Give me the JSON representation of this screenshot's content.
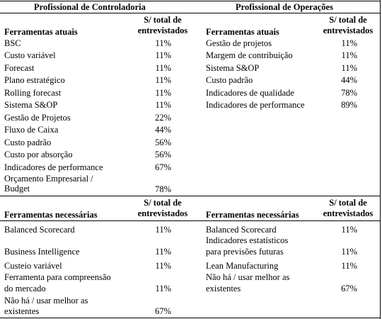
{
  "headers": {
    "controladoria": "Profissional de Controladoria",
    "operacoes": "Profissional de Operações"
  },
  "column_labels": {
    "atuais": "Ferramentas atuais",
    "necessarias": "Ferramentas necessárias",
    "total_line1": "S/ total de",
    "total_line2": "entrevistados"
  },
  "controladoria_atuais": [
    {
      "tool": "BSC",
      "value": "11%"
    },
    {
      "tool": "Custo variável",
      "value": "11%"
    },
    {
      "tool": "Forecast",
      "value": "11%"
    },
    {
      "tool": "Plano estratégico",
      "value": "11%"
    },
    {
      "tool": "Rolling forecast",
      "value": "11%"
    },
    {
      "tool": "Sistema S&OP",
      "value": "11%"
    },
    {
      "tool": "Gestão de Projetos",
      "value": "22%"
    },
    {
      "tool": "Fluxo de Caixa",
      "value": "44%"
    },
    {
      "tool": "Custo padrão",
      "value": "56%"
    },
    {
      "tool": "Custo por absorção",
      "value": "56%"
    },
    {
      "tool": "Indicadores de performance",
      "value": "67%"
    },
    {
      "tool_line1": "Orçamento Empresarial /",
      "tool_line2": "Budget",
      "value": "78%"
    }
  ],
  "operacoes_atuais": [
    {
      "tool": "Gestão de projetos",
      "value": "11%"
    },
    {
      "tool": "Margem de contribuição",
      "value": "11%"
    },
    {
      "tool": "Sistema S&OP",
      "value": "11%"
    },
    {
      "tool": "Custo padrão",
      "value": "44%"
    },
    {
      "tool": "Indicadores de qualidade",
      "value": "78%"
    },
    {
      "tool": "Indicadores de performance",
      "value": "89%"
    }
  ],
  "controladoria_necessarias": [
    {
      "tool": "Balanced Scorecard",
      "value": "11%"
    },
    {
      "tool": "Business Intelligence",
      "value": "11%"
    },
    {
      "tool": "Custeio variável",
      "value": "11%"
    },
    {
      "tool_line1": "Ferramenta para compreensão",
      "tool_line2": "do mercado",
      "value": "11%"
    },
    {
      "tool_line1": "Não há / usar melhor as",
      "tool_line2": "existentes",
      "value": "67%"
    }
  ],
  "operacoes_necessarias": [
    {
      "tool": "Balanced Scorecard",
      "value": "11%"
    },
    {
      "tool_line1": "Indicadores estatísticos",
      "tool_line2": "para previsões futuras",
      "value": "11%"
    },
    {
      "tool": "Lean Manufacturing",
      "value": "11%"
    },
    {
      "tool_line1": "Não há / usar melhor as",
      "tool_line2": "existentes",
      "value": "67%"
    }
  ]
}
